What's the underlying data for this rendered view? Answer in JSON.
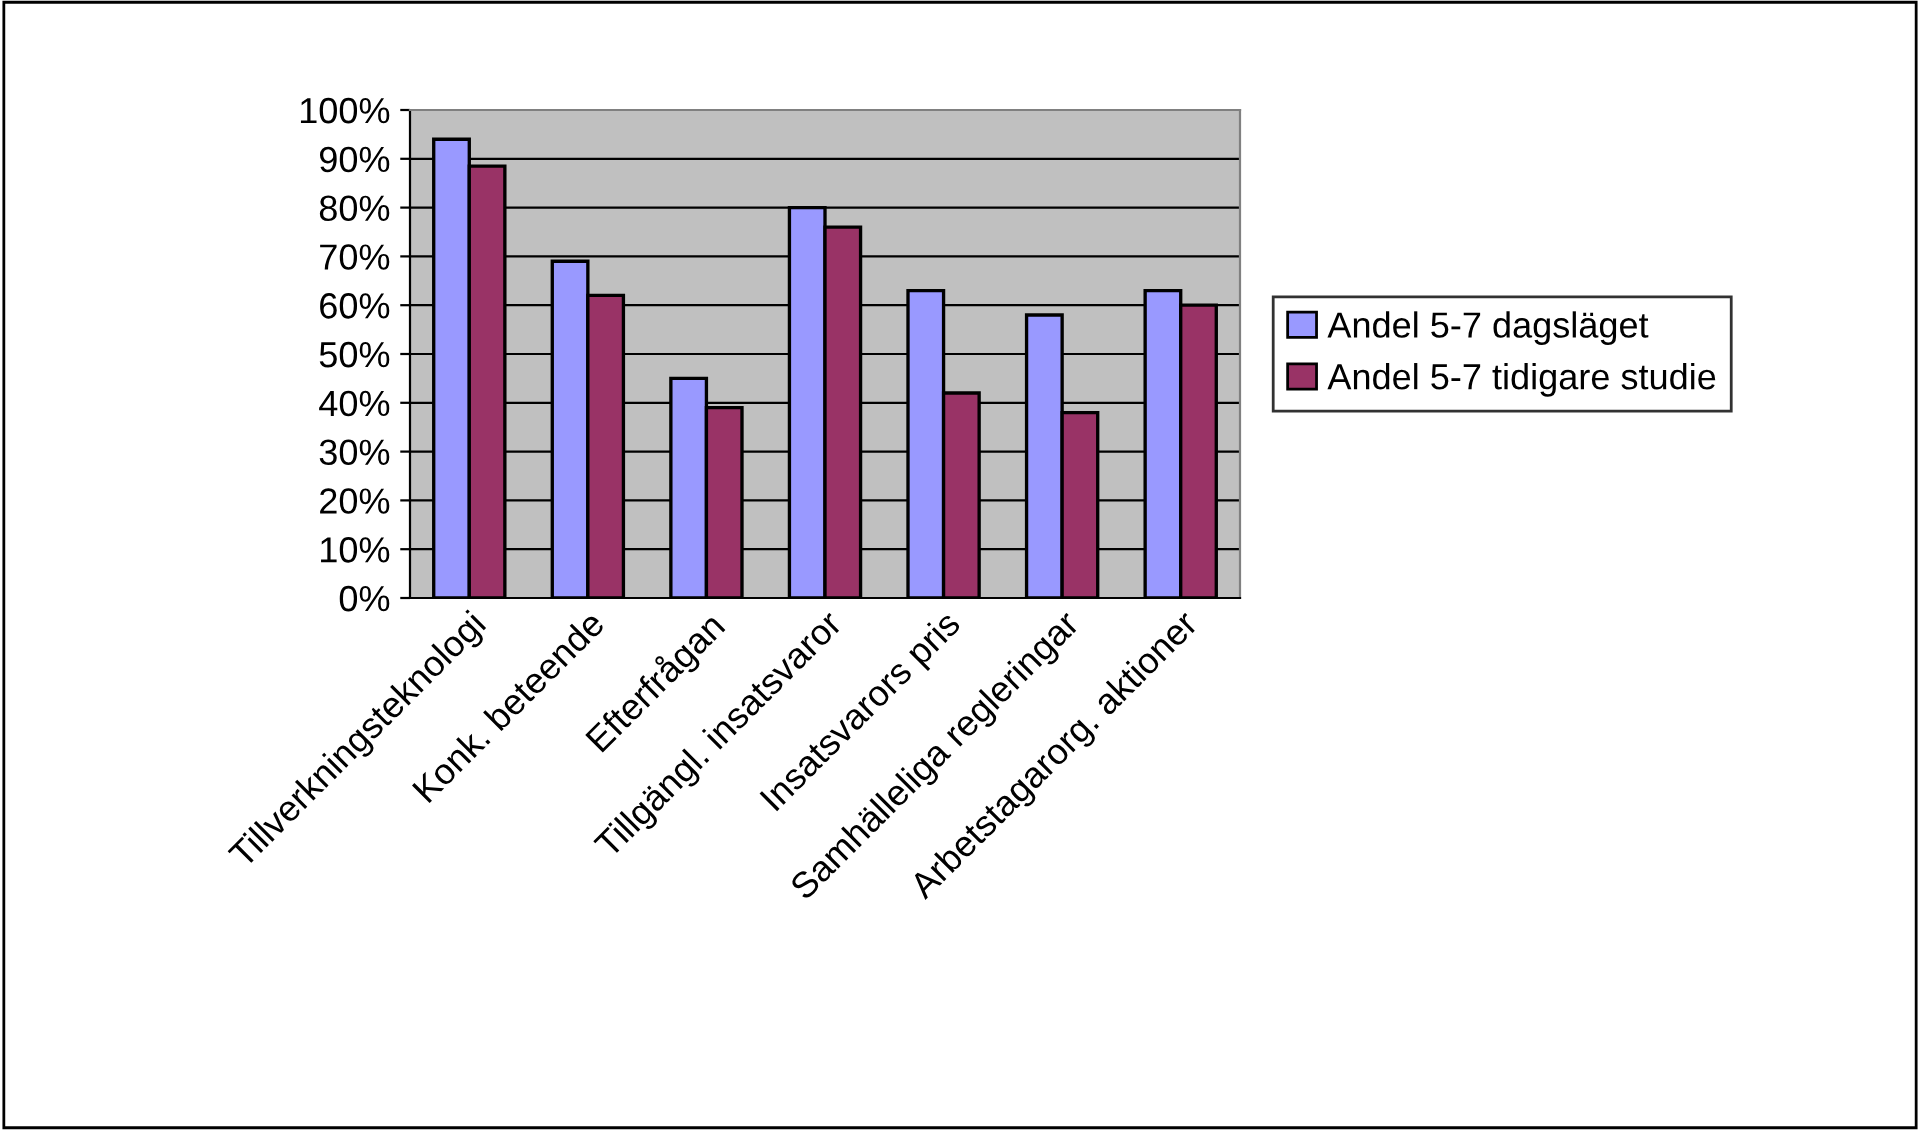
{
  "chart_data": {
    "type": "bar",
    "categories": [
      "Tillverkningsteknologi",
      "Konk. beteende",
      "Efterfrågan",
      "Tillgängl. insatsvaror",
      "Insatsvarors pris",
      "Samhälleliga regleringar",
      "Arbetstagarorg. aktioner"
    ],
    "series": [
      {
        "name": "Andel 5-7 dagsläget",
        "color": "#9999ff",
        "values": [
          94,
          69,
          45,
          80,
          63,
          58,
          63
        ]
      },
      {
        "name": "Andel 5-7 tidigare studie",
        "color": "#993366",
        "values": [
          88.5,
          62,
          39,
          76,
          42,
          38,
          60
        ]
      }
    ],
    "ylim": [
      0,
      100
    ],
    "yticks": [
      {
        "value": 0,
        "label": "0%"
      },
      {
        "value": 10,
        "label": "10%"
      },
      {
        "value": 20,
        "label": "20%"
      },
      {
        "value": 30,
        "label": "30%"
      },
      {
        "value": 40,
        "label": "40%"
      },
      {
        "value": 50,
        "label": "50%"
      },
      {
        "value": 60,
        "label": "60%"
      },
      {
        "value": 70,
        "label": "70%"
      },
      {
        "value": 80,
        "label": "80%"
      },
      {
        "value": 90,
        "label": "90%"
      },
      {
        "value": 100,
        "label": "100%"
      }
    ],
    "grid": "y",
    "legend": "right"
  }
}
